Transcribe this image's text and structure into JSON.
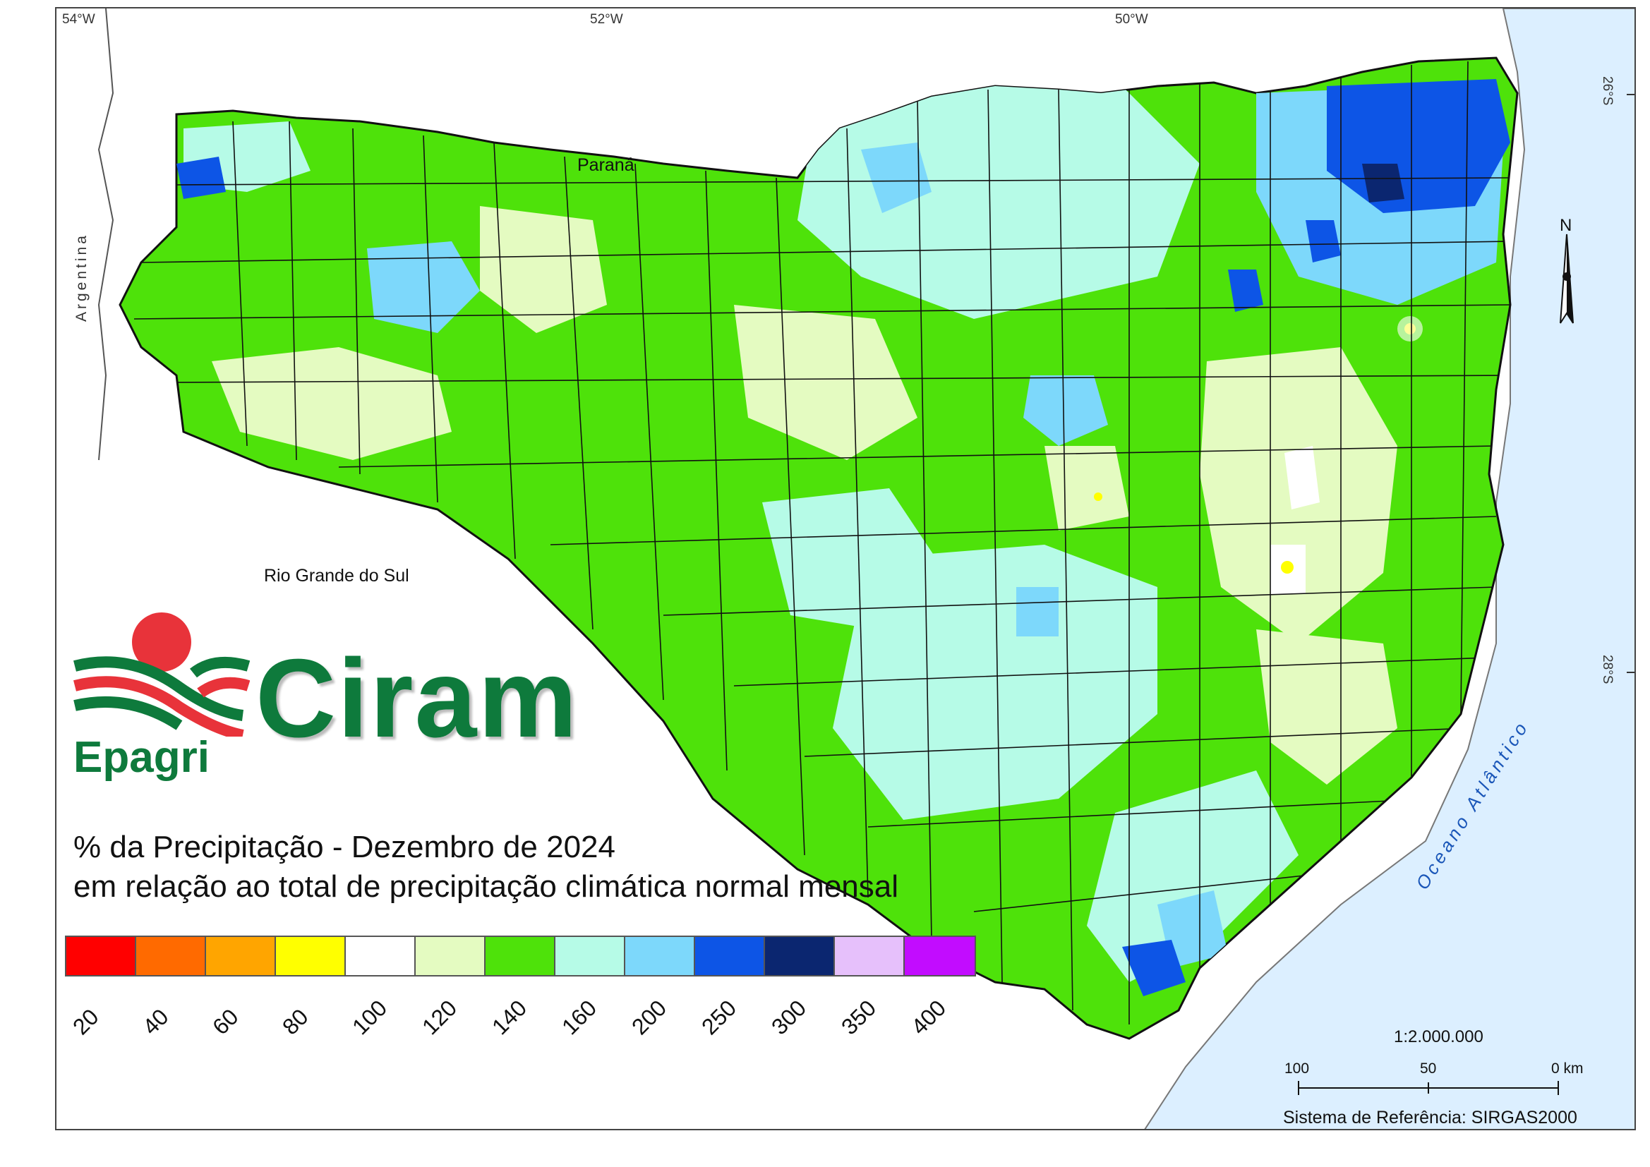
{
  "title": {
    "line1": "% da Precipitação - Dezembro de 2024",
    "line2": "em relação ao total de precipitação climática normal mensal"
  },
  "graticule": {
    "lon_labels": [
      "54°W",
      "52°W",
      "50°W"
    ],
    "lat_labels": [
      "26°S",
      "28°S"
    ]
  },
  "places": {
    "parana": "Paraná",
    "argentina": "Argentina",
    "rio_grande_do_sul": "Rio Grande do Sul",
    "ocean": "Oceano Atlântico"
  },
  "legend": {
    "classes": [
      {
        "label": "20",
        "color": "#ff0000"
      },
      {
        "label": "40",
        "color": "#ff6a00"
      },
      {
        "label": "60",
        "color": "#ffa500"
      },
      {
        "label": "80",
        "color": "#ffff00"
      },
      {
        "label": "100",
        "color": "#ffffff"
      },
      {
        "label": "120",
        "color": "#e4fbc1"
      },
      {
        "label": "140",
        "color": "#4ee20a"
      },
      {
        "label": "160",
        "color": "#b6fbe7"
      },
      {
        "label": "200",
        "color": "#7dd8fb"
      },
      {
        "label": "250",
        "color": "#0d55e6"
      },
      {
        "label": "300",
        "color": "#0b2670"
      },
      {
        "label": "350",
        "color": "#e6c0fb"
      },
      {
        "label": "400",
        "color": "#c20cff"
      }
    ]
  },
  "scale": {
    "ratio": "1:2.000.000",
    "ticks": [
      "100",
      "50",
      "0 km"
    ]
  },
  "north_arrow": "N",
  "reference_system": "Sistema de Referência: SIRGAS2000",
  "logo": {
    "brand": "Ciram",
    "org": "Epagri"
  },
  "colors": {
    "ocean": "#dcefff",
    "state_border": "#111111",
    "logo_green": "#0e7a3c",
    "logo_red": "#e8333a"
  }
}
